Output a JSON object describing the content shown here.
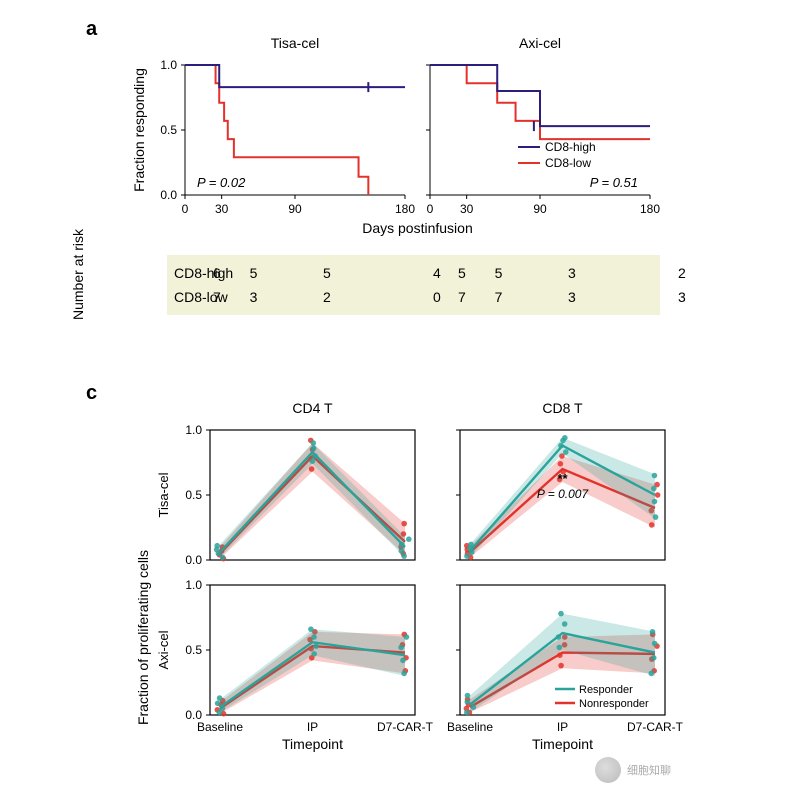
{
  "panels": {
    "a": "a",
    "c": "c"
  },
  "panelA": {
    "title_left": "Tisa-cel",
    "title_right": "Axi-cel",
    "ylabel": "Fraction responding",
    "xlabel": "Days postinfusion",
    "xlim": [
      0,
      180
    ],
    "ylim": [
      0,
      1.0
    ],
    "xticks": [
      0,
      30,
      90,
      180
    ],
    "yticks": [
      0,
      0.5,
      1.0
    ],
    "axis_color": "#000000",
    "line_width": 2,
    "colors": {
      "high": "#2b1f7d",
      "low": "#e4322b"
    },
    "legend": {
      "high": "CD8-high",
      "low": "CD8-low"
    },
    "p_left": "P = 0.02",
    "p_right": "P = 0.51",
    "p_fontsize": 13,
    "p_style": "italic",
    "title_fontsize": 14,
    "label_fontsize": 14,
    "tick_fontsize": 12,
    "tisa": {
      "high": [
        [
          0,
          1.0
        ],
        [
          28,
          1.0
        ],
        [
          28,
          0.83
        ],
        [
          155,
          0.83
        ],
        [
          155,
          0.83
        ],
        [
          180,
          0.83
        ]
      ],
      "high_tick_x": 150,
      "low": [
        [
          0,
          1.0
        ],
        [
          25,
          1.0
        ],
        [
          25,
          0.86
        ],
        [
          28,
          0.86
        ],
        [
          28,
          0.71
        ],
        [
          32,
          0.71
        ],
        [
          32,
          0.57
        ],
        [
          35,
          0.57
        ],
        [
          35,
          0.43
        ],
        [
          40,
          0.43
        ],
        [
          40,
          0.29
        ],
        [
          142,
          0.29
        ],
        [
          142,
          0.14
        ],
        [
          150,
          0.14
        ],
        [
          150,
          0.0
        ]
      ]
    },
    "axi": {
      "high": [
        [
          0,
          1.0
        ],
        [
          55,
          1.0
        ],
        [
          55,
          0.8
        ],
        [
          90,
          0.8
        ],
        [
          90,
          0.53
        ],
        [
          180,
          0.53
        ]
      ],
      "high_tick_x": 85,
      "low": [
        [
          0,
          1.0
        ],
        [
          30,
          1.0
        ],
        [
          30,
          0.86
        ],
        [
          55,
          0.86
        ],
        [
          55,
          0.71
        ],
        [
          70,
          0.71
        ],
        [
          70,
          0.57
        ],
        [
          90,
          0.57
        ],
        [
          90,
          0.43
        ],
        [
          180,
          0.43
        ]
      ]
    }
  },
  "risk": {
    "ylabel": "Number at risk",
    "rows": [
      "CD8-high",
      "CD8-low"
    ],
    "xticks_left": [
      0,
      30,
      90,
      180
    ],
    "xticks_right": [
      0,
      30,
      90,
      180
    ],
    "values": {
      "CD8-high": {
        "tisa": [
          6,
          5,
          5,
          4
        ],
        "axi": [
          5,
          5,
          3,
          2
        ]
      },
      "CD8-low": {
        "tisa": [
          7,
          3,
          2,
          0
        ],
        "axi": [
          7,
          7,
          3,
          3
        ]
      }
    },
    "bg_color": "#f2f2d9",
    "fontsize": 14
  },
  "panelC": {
    "col_titles": [
      "CD4 T",
      "CD8 T"
    ],
    "row_titles": [
      "Tisa-cel",
      "Axi-cel"
    ],
    "ylabel": "Fraction of proliferating cells",
    "xlabel": "Timepoint",
    "xcats": [
      "Baseline",
      "IP",
      "D7-CAR-T"
    ],
    "ylim": [
      0,
      1.0
    ],
    "yticks": [
      0,
      0.5,
      1.0
    ],
    "colors": {
      "resp": "#2aa39a",
      "nonresp": "#e4322b"
    },
    "ribbon_opacity": 0.25,
    "point_radius": 2.8,
    "line_width": 2.4,
    "legend": {
      "resp": "Responder",
      "nonresp": "Nonresponder"
    },
    "annot": {
      "text": "**",
      "p": "P = 0.007",
      "panel": "tisa_cd8",
      "at_index": 1
    },
    "label_fontsize": 14,
    "tick_fontsize": 12,
    "title_fontsize": 14,
    "data": {
      "tisa_cd4": {
        "resp": {
          "mean": [
            0.06,
            0.83,
            0.1
          ],
          "lo": [
            0.02,
            0.74,
            0.02
          ],
          "hi": [
            0.12,
            0.9,
            0.18
          ],
          "pts": [
            [
              0,
              0.02
            ],
            [
              0,
              0.05
            ],
            [
              0,
              0.08
            ],
            [
              0,
              0.11
            ],
            [
              1,
              0.76
            ],
            [
              1,
              0.8
            ],
            [
              1,
              0.86
            ],
            [
              1,
              0.9
            ],
            [
              2,
              0.03
            ],
            [
              2,
              0.07
            ],
            [
              2,
              0.12
            ],
            [
              2,
              0.16
            ]
          ]
        },
        "nonresp": {
          "mean": [
            0.05,
            0.8,
            0.14
          ],
          "lo": [
            0.01,
            0.68,
            0.04
          ],
          "hi": [
            0.1,
            0.9,
            0.28
          ],
          "pts": [
            [
              0,
              0.01
            ],
            [
              0,
              0.04
            ],
            [
              0,
              0.07
            ],
            [
              0,
              0.1
            ],
            [
              1,
              0.7
            ],
            [
              1,
              0.78
            ],
            [
              1,
              0.85
            ],
            [
              1,
              0.92
            ],
            [
              2,
              0.05
            ],
            [
              2,
              0.1
            ],
            [
              2,
              0.2
            ],
            [
              2,
              0.28
            ]
          ]
        }
      },
      "tisa_cd8": {
        "resp": {
          "mean": [
            0.07,
            0.88,
            0.5
          ],
          "lo": [
            0.02,
            0.82,
            0.32
          ],
          "hi": [
            0.12,
            0.94,
            0.66
          ],
          "pts": [
            [
              0,
              0.03
            ],
            [
              0,
              0.06
            ],
            [
              0,
              0.09
            ],
            [
              0,
              0.12
            ],
            [
              1,
              0.83
            ],
            [
              1,
              0.88
            ],
            [
              1,
              0.92
            ],
            [
              1,
              0.94
            ],
            [
              2,
              0.33
            ],
            [
              2,
              0.45
            ],
            [
              2,
              0.55
            ],
            [
              2,
              0.65
            ]
          ]
        },
        "nonresp": {
          "mean": [
            0.06,
            0.7,
            0.4
          ],
          "lo": [
            0.02,
            0.6,
            0.25
          ],
          "hi": [
            0.11,
            0.8,
            0.58
          ],
          "pts": [
            [
              0,
              0.02
            ],
            [
              0,
              0.05
            ],
            [
              0,
              0.08
            ],
            [
              0,
              0.11
            ],
            [
              1,
              0.62
            ],
            [
              1,
              0.68
            ],
            [
              1,
              0.74
            ],
            [
              1,
              0.8
            ],
            [
              2,
              0.27
            ],
            [
              2,
              0.38
            ],
            [
              2,
              0.5
            ],
            [
              2,
              0.58
            ]
          ]
        }
      },
      "axi_cd4": {
        "resp": {
          "mean": [
            0.06,
            0.56,
            0.46
          ],
          "lo": [
            0.02,
            0.46,
            0.3
          ],
          "hi": [
            0.12,
            0.66,
            0.6
          ],
          "pts": [
            [
              0,
              0.02
            ],
            [
              0,
              0.05
            ],
            [
              0,
              0.09
            ],
            [
              0,
              0.13
            ],
            [
              1,
              0.47
            ],
            [
              1,
              0.53
            ],
            [
              1,
              0.6
            ],
            [
              1,
              0.66
            ],
            [
              2,
              0.32
            ],
            [
              2,
              0.42
            ],
            [
              2,
              0.52
            ],
            [
              2,
              0.6
            ]
          ]
        },
        "nonresp": {
          "mean": [
            0.05,
            0.53,
            0.48
          ],
          "lo": [
            0.01,
            0.42,
            0.32
          ],
          "hi": [
            0.1,
            0.64,
            0.62
          ],
          "pts": [
            [
              0,
              0.01
            ],
            [
              0,
              0.04
            ],
            [
              0,
              0.08
            ],
            [
              0,
              0.11
            ],
            [
              1,
              0.44
            ],
            [
              1,
              0.51
            ],
            [
              1,
              0.58
            ],
            [
              1,
              0.64
            ],
            [
              2,
              0.34
            ],
            [
              2,
              0.44
            ],
            [
              2,
              0.54
            ],
            [
              2,
              0.62
            ]
          ]
        }
      },
      "axi_cd8": {
        "resp": {
          "mean": [
            0.08,
            0.63,
            0.48
          ],
          "lo": [
            0.02,
            0.5,
            0.3
          ],
          "hi": [
            0.15,
            0.78,
            0.64
          ],
          "pts": [
            [
              0,
              0.02
            ],
            [
              0,
              0.06
            ],
            [
              0,
              0.1
            ],
            [
              0,
              0.15
            ],
            [
              1,
              0.52
            ],
            [
              1,
              0.6
            ],
            [
              1,
              0.7
            ],
            [
              1,
              0.78
            ],
            [
              2,
              0.32
            ],
            [
              2,
              0.44
            ],
            [
              2,
              0.55
            ],
            [
              2,
              0.64
            ]
          ]
        },
        "nonresp": {
          "mean": [
            0.06,
            0.48,
            0.47
          ],
          "lo": [
            0.02,
            0.36,
            0.32
          ],
          "hi": [
            0.12,
            0.6,
            0.62
          ],
          "pts": [
            [
              0,
              0.02
            ],
            [
              0,
              0.05
            ],
            [
              0,
              0.08
            ],
            [
              0,
              0.12
            ],
            [
              1,
              0.38
            ],
            [
              1,
              0.46
            ],
            [
              1,
              0.54
            ],
            [
              1,
              0.6
            ],
            [
              2,
              0.34
            ],
            [
              2,
              0.43
            ],
            [
              2,
              0.53
            ],
            [
              2,
              0.62
            ]
          ]
        }
      }
    }
  },
  "watermark": "细胞知聊"
}
